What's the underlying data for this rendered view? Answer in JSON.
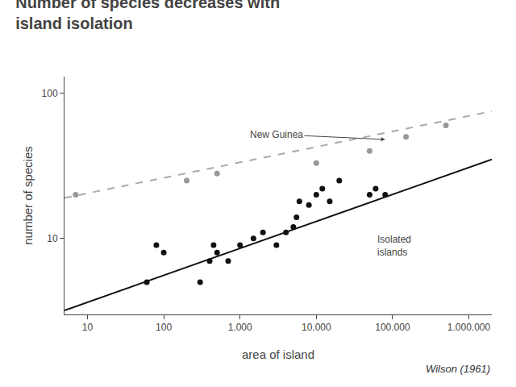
{
  "chart_data": {
    "type": "scatter",
    "title": "Number of species decreases with",
    "subtitle": "island isolation",
    "x_label": "area of island",
    "y_label": "number of species",
    "log": true,
    "grid": false,
    "xlim": [
      5,
      2000000
    ],
    "ylim": [
      3,
      130
    ],
    "xticks": [
      10,
      100,
      {
        "value": 1000,
        "label": "1.000"
      },
      {
        "value": 10000,
        "label": "10.000"
      },
      {
        "value": 100000,
        "label": "100.000"
      },
      {
        "value": 1000000,
        "label": "1.000.000"
      }
    ],
    "yticks": [
      10,
      100
    ],
    "series": [
      {
        "type": "line",
        "line_style": "dashed",
        "color": "#aaaaaa",
        "x": [
          5,
          2000000
        ],
        "values": [
          19,
          75
        ]
      },
      {
        "type": "line",
        "line_style": "solid",
        "color": "#111111",
        "x": [
          5,
          2000000
        ],
        "values": [
          3.2,
          35
        ]
      },
      {
        "type": "scatter",
        "marker": "circle",
        "color": "#999999",
        "x": [
          7,
          200,
          500,
          10000,
          50000,
          150000,
          500000
        ],
        "values": [
          20,
          25,
          28,
          33,
          40,
          50,
          60
        ]
      },
      {
        "type": "scatter",
        "marker": "circle",
        "color": "#111111",
        "x": [
          60,
          80,
          100,
          300,
          400,
          450,
          500,
          700,
          1000,
          1500,
          2000,
          3000,
          4000,
          5000,
          5500,
          6000,
          8000,
          10000,
          12000,
          15000,
          20000,
          50000,
          60000,
          80000
        ],
        "values": [
          5,
          9,
          8,
          5,
          7,
          9,
          8,
          7,
          9,
          10,
          11,
          9,
          11,
          12,
          14,
          18,
          17,
          20,
          22,
          18,
          25,
          20,
          22,
          20
        ]
      }
    ],
    "annotations": [
      {
        "text": "New Guinea",
        "x": 3000,
        "y": 52,
        "arrow_x": 80000,
        "arrow_y": 48
      },
      {
        "text": "Isolated\nislands",
        "x": 60000,
        "y": 11
      },
      {
        "text": "Wilson (1961)"
      }
    ]
  }
}
